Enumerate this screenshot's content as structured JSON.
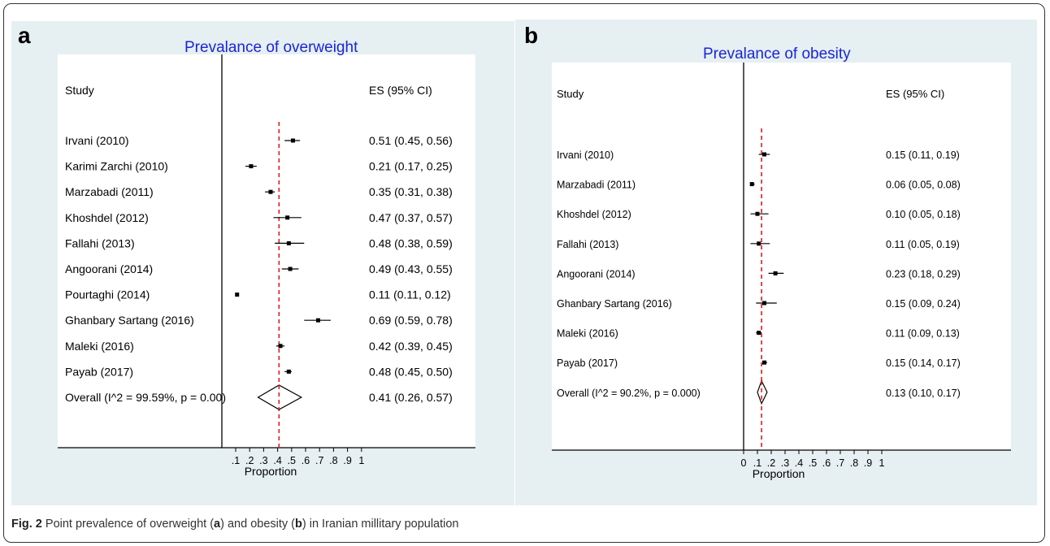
{
  "caption": {
    "prefix": "Fig. 2",
    "text1": " Point prevalence of overweight (",
    "a": "a",
    "text2": ") and obesity (",
    "b": "b",
    "text3": ") in Iranian millitary population"
  },
  "colors": {
    "title": "#1a26d6",
    "null_line": "#e41a1c",
    "panel_bg": "#e6eff2"
  },
  "chart_data": [
    {
      "type": "forest",
      "panel_label": "a",
      "title": "Prevalance of overweight",
      "col_study": "Study",
      "col_es": "ES (95% CI)",
      "xlabel": "Proportion",
      "xticks": [
        0.1,
        0.2,
        0.3,
        0.4,
        0.5,
        0.6,
        0.7,
        0.8,
        0.9,
        1
      ],
      "xtick_labels": [
        ".1",
        ".2",
        ".3",
        ".4",
        ".5",
        ".6",
        ".7",
        ".8",
        ".9",
        "1"
      ],
      "pooled_line": 0.41,
      "studies": [
        {
          "name": "Irvani (2010)",
          "es": 0.51,
          "lo": 0.45,
          "hi": 0.56,
          "label": "0.51 (0.45, 0.56)"
        },
        {
          "name": "Karimi Zarchi (2010)",
          "es": 0.21,
          "lo": 0.17,
          "hi": 0.25,
          "label": "0.21 (0.17, 0.25)"
        },
        {
          "name": "Marzabadi  (2011)",
          "es": 0.35,
          "lo": 0.31,
          "hi": 0.38,
          "label": "0.35 (0.31, 0.38)"
        },
        {
          "name": "Khoshdel (2012)",
          "es": 0.47,
          "lo": 0.37,
          "hi": 0.57,
          "label": "0.47 (0.37, 0.57)"
        },
        {
          "name": "Fallahi (2013)",
          "es": 0.48,
          "lo": 0.38,
          "hi": 0.59,
          "label": "0.48 (0.38, 0.59)"
        },
        {
          "name": "Angoorani (2014)",
          "es": 0.49,
          "lo": 0.43,
          "hi": 0.55,
          "label": "0.49 (0.43, 0.55)"
        },
        {
          "name": "Pourtaghi (2014)",
          "es": 0.11,
          "lo": 0.11,
          "hi": 0.12,
          "label": "0.11 (0.11, 0.12)"
        },
        {
          "name": "Ghanbary Sartang (2016)",
          "es": 0.69,
          "lo": 0.59,
          "hi": 0.78,
          "label": "0.69 (0.59, 0.78)"
        },
        {
          "name": "Maleki (2016)",
          "es": 0.42,
          "lo": 0.39,
          "hi": 0.45,
          "label": "0.42 (0.39, 0.45)"
        },
        {
          "name": "Payab (2017)",
          "es": 0.48,
          "lo": 0.45,
          "hi": 0.5,
          "label": "0.48 (0.45, 0.50)"
        }
      ],
      "overall": {
        "name": "Overall  (I^2 = 99.59%, p = 0.00)",
        "es": 0.41,
        "lo": 0.26,
        "hi": 0.57,
        "label": "0.41 (0.26, 0.57)"
      }
    },
    {
      "type": "forest",
      "panel_label": "b",
      "title": "Prevalance of obesity",
      "col_study": "Study",
      "col_es": "ES (95% CI)",
      "xlabel": "Proportion",
      "xticks": [
        0,
        0.1,
        0.2,
        0.3,
        0.4,
        0.5,
        0.6,
        0.7,
        0.8,
        0.9,
        1
      ],
      "xtick_labels": [
        "0",
        ".1",
        ".2",
        ".3",
        ".4",
        ".5",
        ".6",
        ".7",
        ".8",
        ".9",
        "1"
      ],
      "pooled_line": 0.13,
      "studies": [
        {
          "name": "Irvani (2010)",
          "es": 0.15,
          "lo": 0.11,
          "hi": 0.19,
          "label": "0.15 (0.11, 0.19)"
        },
        {
          "name": "Marzabadi  (2011)",
          "es": 0.06,
          "lo": 0.05,
          "hi": 0.08,
          "label": "0.06 (0.05, 0.08)"
        },
        {
          "name": "Khoshdel (2012)",
          "es": 0.1,
          "lo": 0.05,
          "hi": 0.18,
          "label": "0.10 (0.05, 0.18)"
        },
        {
          "name": "Fallahi (2013)",
          "es": 0.11,
          "lo": 0.05,
          "hi": 0.19,
          "label": "0.11 (0.05, 0.19)"
        },
        {
          "name": "Angoorani (2014)",
          "es": 0.23,
          "lo": 0.18,
          "hi": 0.29,
          "label": "0.23 (0.18, 0.29)"
        },
        {
          "name": "Ghanbary Sartang (2016)",
          "es": 0.15,
          "lo": 0.09,
          "hi": 0.24,
          "label": "0.15 (0.09, 0.24)"
        },
        {
          "name": "Maleki (2016)",
          "es": 0.11,
          "lo": 0.09,
          "hi": 0.13,
          "label": "0.11 (0.09, 0.13)"
        },
        {
          "name": "Payab (2017)",
          "es": 0.15,
          "lo": 0.14,
          "hi": 0.17,
          "label": "0.15 (0.14, 0.17)"
        }
      ],
      "overall": {
        "name": "Overall  (I^2 = 90.2%, p = 0.000)",
        "es": 0.13,
        "lo": 0.1,
        "hi": 0.17,
        "label": "0.13 (0.10, 0.17)"
      }
    }
  ]
}
